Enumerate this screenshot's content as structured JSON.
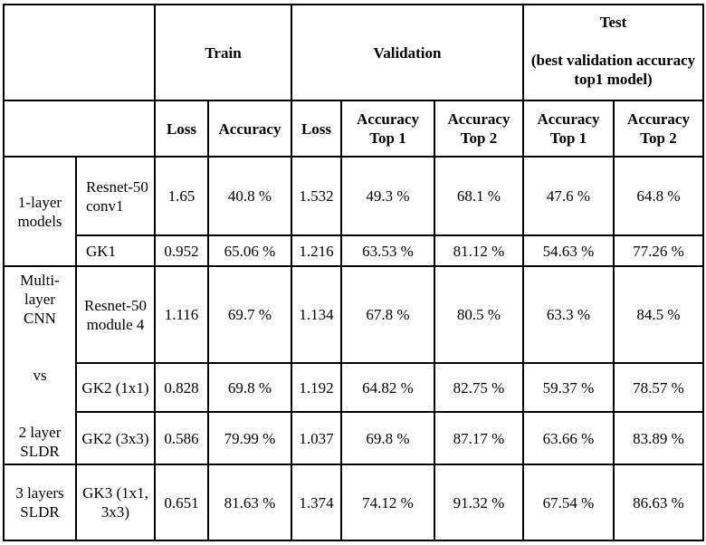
{
  "header": {
    "train": "Train",
    "validation": "Validation",
    "test_title": "Test",
    "test_subtitle": "(best validation accuracy top1 model)",
    "cols": {
      "train_loss": "Loss",
      "train_acc": "Accuracy",
      "val_loss": "Loss",
      "val_acc1_l1": "Accuracy",
      "val_acc1_l2": "Top 1",
      "val_acc2_l1": "Accuracy",
      "val_acc2_l2": "Top 2",
      "test_acc1_l1": "Accuracy",
      "test_acc1_l2": "Top 1",
      "test_acc2_l1": "Accuracy",
      "test_acc2_l2": "Top 2"
    }
  },
  "groups": {
    "g1": "1-layer models",
    "g2_a": "Multi-layer CNN",
    "g2_b": "vs",
    "g2_c": "2 layer SLDR",
    "g3": "3 layers SLDR"
  },
  "rows": [
    {
      "model": "Resnet-50 conv1",
      "train_loss": "1.65",
      "train_acc": "40.8 %",
      "val_loss": "1.532",
      "val_top1": "49.3 %",
      "val_top2": "68.1 %",
      "test_top1": "47.6 %",
      "test_top2": "64.8 %"
    },
    {
      "model": "GK1",
      "train_loss": "0.952",
      "train_acc": "65.06 %",
      "val_loss": "1.216",
      "val_top1": "63.53 %",
      "val_top2": "81.12 %",
      "test_top1": "54.63 %",
      "test_top2": "77.26 %"
    },
    {
      "model": "Resnet-50 module 4",
      "train_loss": "1.116",
      "train_acc": "69.7 %",
      "val_loss": "1.134",
      "val_top1": "67.8 %",
      "val_top2": "80.5 %",
      "test_top1": "63.3 %",
      "test_top2": "84.5 %"
    },
    {
      "model": "GK2 (1x1)",
      "train_loss": "0.828",
      "train_acc": "69.8 %",
      "val_loss": "1.192",
      "val_top1": "64.82 %",
      "val_top2": "82.75 %",
      "test_top1": "59.37 %",
      "test_top2": "78.57 %"
    },
    {
      "model": "GK2 (3x3)",
      "train_loss": "0.586",
      "train_acc": "79.99 %",
      "val_loss": "1.037",
      "val_top1": "69.8 %",
      "val_top2": "87.17 %",
      "test_top1": "63.66 %",
      "test_top2": "83.89 %"
    },
    {
      "model": "GK3 (1x1, 3x3)",
      "train_loss": "0.651",
      "train_acc": "81.63 %",
      "val_loss": "1.374",
      "val_top1": "74.12 %",
      "val_top2": "91.32 %",
      "test_top1": "67.54 %",
      "test_top2": "86.63 %"
    }
  ]
}
